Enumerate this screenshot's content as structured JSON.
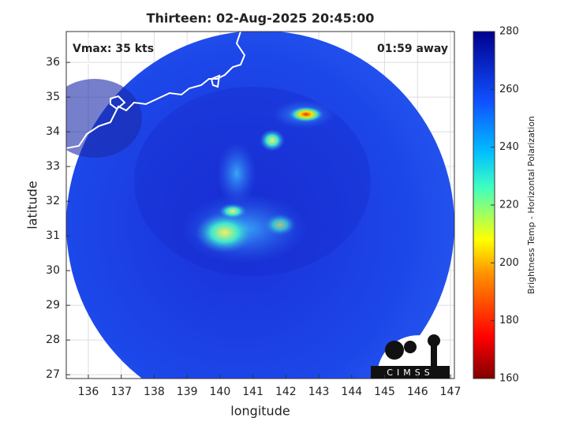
{
  "chart_data": {
    "type": "image",
    "title": "Thirteen: 02-Aug-2025 20:45:00",
    "annotations": [
      "Vmax: 35 kts",
      "01:59 away"
    ],
    "x_label": "longitude",
    "y_label": "latitude",
    "xlim": [
      135.33,
      147.12
    ],
    "xticks": [
      136,
      137,
      138,
      139,
      140,
      141,
      142,
      143,
      144,
      145,
      146,
      147
    ],
    "ylim": [
      26.89,
      36.89
    ],
    "yticks": [
      27,
      28,
      29,
      30,
      31,
      32,
      33,
      34,
      35,
      36
    ],
    "grid": true,
    "colorbar": {
      "label": "Brightness Temp - Horizontal Polarization",
      "lim": [
        160,
        280
      ],
      "ticks": [
        160,
        180,
        200,
        220,
        240,
        260,
        280
      ]
    },
    "logo": "CIMSS"
  }
}
